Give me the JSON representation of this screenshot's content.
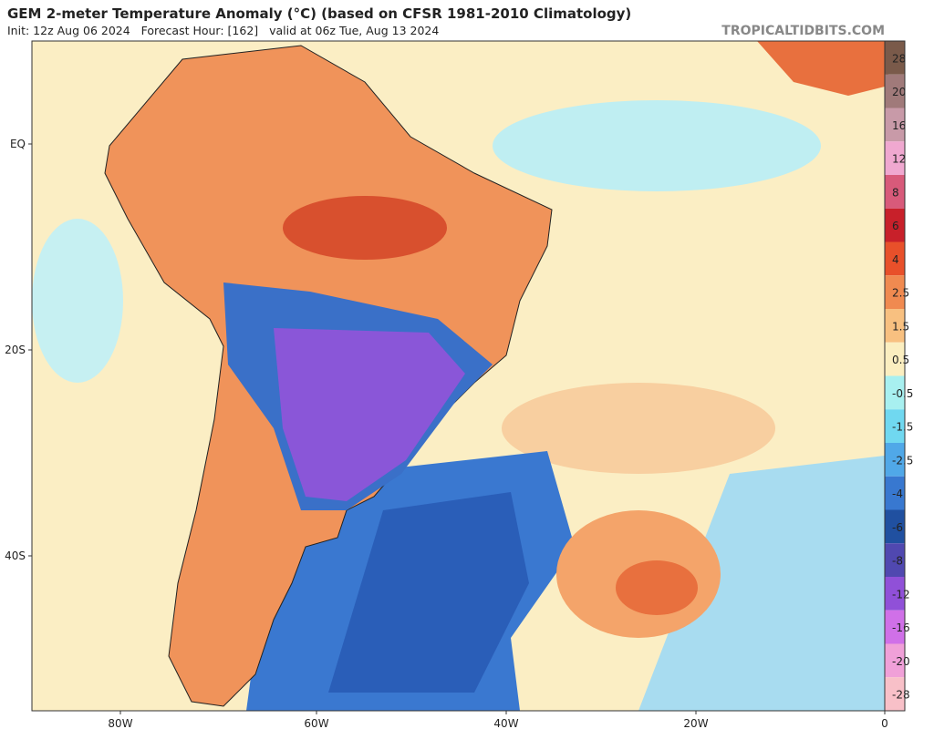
{
  "header": {
    "title": "GEM 2-meter Temperature Anomaly (°C) (based on CFSR 1981-2010 Climatology)",
    "subtitle": "Init: 12z Aug 06 2024   Forecast Hour: [162]   valid at 06z Tue, Aug 13 2024",
    "watermark": "TROPICALTIDBITS.COM"
  },
  "map": {
    "lat_labels": [
      "EQ",
      "20S",
      "40S"
    ],
    "lon_labels": [
      "80W",
      "60W",
      "40W",
      "20W",
      "0"
    ]
  },
  "legend": {
    "ticks": [
      28,
      20,
      16,
      12,
      8,
      6,
      4,
      2.5,
      1.5,
      0.5,
      -0.5,
      -1.5,
      -2.5,
      -4,
      -6,
      -8,
      -12,
      -16,
      -20,
      -28
    ]
  }
}
